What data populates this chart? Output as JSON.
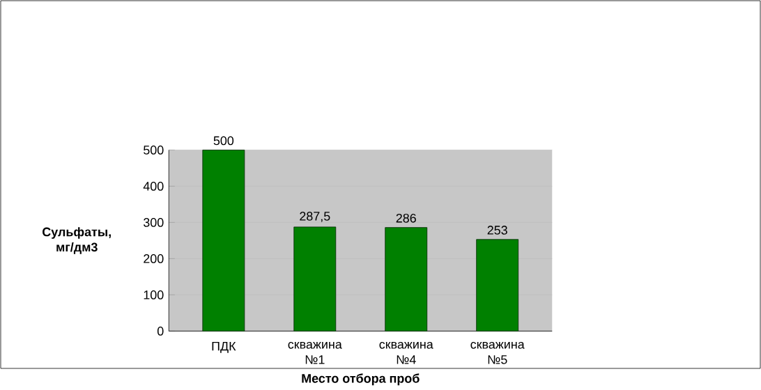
{
  "chart_data": {
    "type": "bar",
    "xlabel": "Место отбора проб",
    "ylabel": "Сульфаты, мг/дм3",
    "categories": [
      "ПДК",
      "скважина №1",
      "скважина №4",
      "скважина №5"
    ],
    "values": [
      500,
      287.5,
      286,
      253
    ],
    "value_labels": [
      "500",
      "287,5",
      "286",
      "253"
    ],
    "color": "#008000",
    "ylim": [
      0,
      500
    ],
    "yticks": [
      0,
      100,
      200,
      300,
      400,
      500
    ],
    "grid": "y"
  }
}
